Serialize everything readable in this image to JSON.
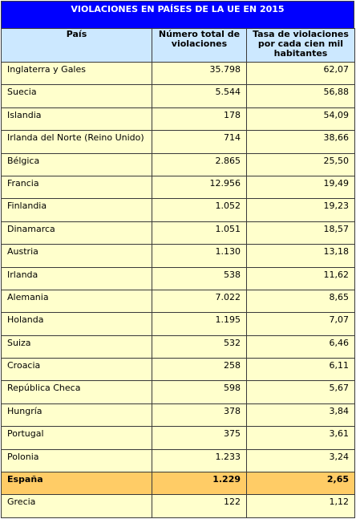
{
  "title": "VIOLACIONES EN PAÍSES DE LA UE EN 2015",
  "colors": {
    "title_bg": "#0000ff",
    "header_bg": "#cce8ff",
    "row_bg": "#ffffcc",
    "highlight_bg": "#ffcc66"
  },
  "columns": [
    "País",
    "Número total de violaciones",
    "Tasa de violaciones por cada cien mil habitantes"
  ],
  "rows": [
    {
      "country": "Inglaterra y Gales",
      "total": "35.798",
      "rate": "62,07"
    },
    {
      "country": "Suecia",
      "total": "5.544",
      "rate": "56,88"
    },
    {
      "country": "Islandia",
      "total": "178",
      "rate": "54,09"
    },
    {
      "country": "Irlanda del Norte (Reino Unido)",
      "total": "714",
      "rate": "38,66"
    },
    {
      "country": "Bélgica",
      "total": "2.865",
      "rate": "25,50"
    },
    {
      "country": "Francia",
      "total": "12.956",
      "rate": "19,49"
    },
    {
      "country": "Finlandia",
      "total": "1.052",
      "rate": "19,23"
    },
    {
      "country": "Dinamarca",
      "total": "1.051",
      "rate": "18,57"
    },
    {
      "country": "Austria",
      "total": "1.130",
      "rate": "13,18"
    },
    {
      "country": "Irlanda",
      "total": "538",
      "rate": "11,62"
    },
    {
      "country": "Alemania",
      "total": "7.022",
      "rate": "8,65"
    },
    {
      "country": "Holanda",
      "total": "1.195",
      "rate": "7,07"
    },
    {
      "country": "Suiza",
      "total": "532",
      "rate": "6,46"
    },
    {
      "country": "Croacia",
      "total": "258",
      "rate": "6,11"
    },
    {
      "country": "República Checa",
      "total": "598",
      "rate": "5,67"
    },
    {
      "country": "Hungría",
      "total": "378",
      "rate": "3,84"
    },
    {
      "country": "Portugal",
      "total": "375",
      "rate": "3,61"
    },
    {
      "country": "Polonia",
      "total": "1.233",
      "rate": "3,24"
    },
    {
      "country": "España",
      "total": "1.229",
      "rate": "2,65",
      "highlight": true
    },
    {
      "country": "Grecia",
      "total": "122",
      "rate": "1,12"
    }
  ]
}
